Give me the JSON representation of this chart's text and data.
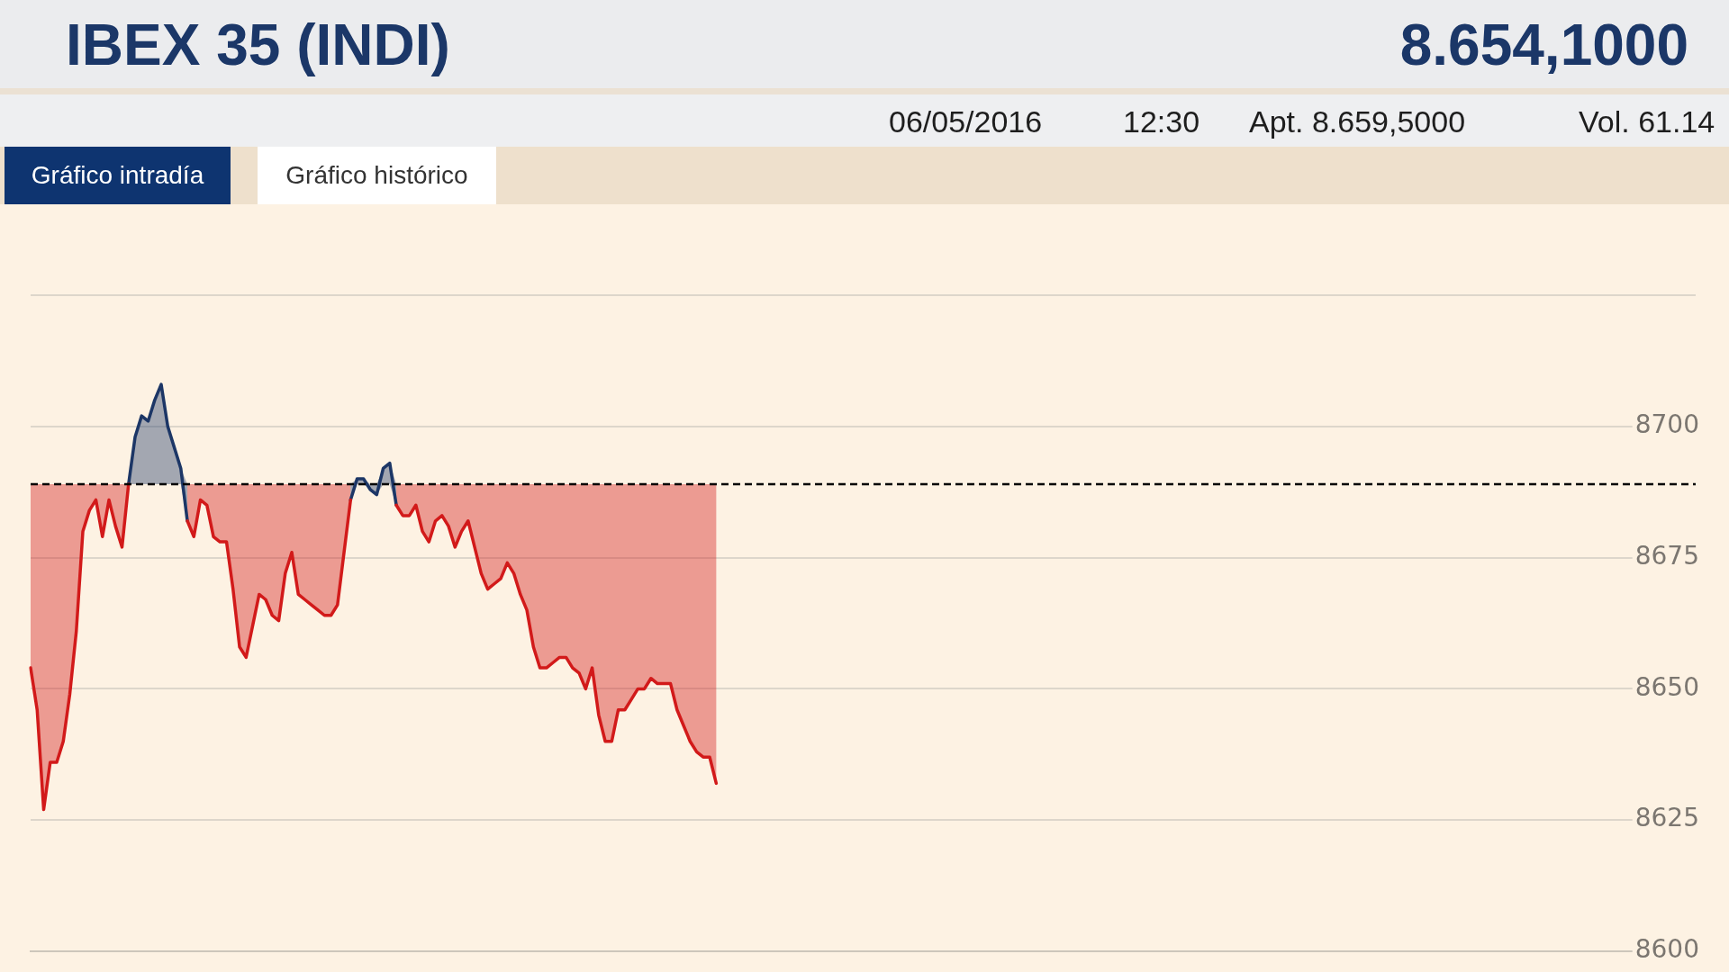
{
  "chart_data": {
    "type": "line",
    "title": "IBEX 35 (INDI)",
    "subtitle": "8.654,1000",
    "annotations": [
      "06/05/2016",
      "12:30",
      "Apt. 8.659,5000",
      "Vol. 61.14",
      "Gráfico intradía",
      "Gráfico histórico"
    ],
    "categories": [
      null,
      null,
      null,
      null,
      null,
      null,
      null,
      null,
      null,
      null,
      null,
      null,
      null,
      null,
      null,
      null,
      null,
      null,
      null,
      null,
      null,
      null,
      null,
      null,
      null,
      null,
      null,
      null,
      null,
      null,
      null,
      null,
      null,
      null,
      null,
      null,
      null,
      null,
      null,
      null,
      null,
      null,
      null,
      null,
      null,
      null,
      null,
      null,
      null,
      null,
      null,
      null,
      null,
      null,
      null,
      null,
      null,
      null,
      null,
      null,
      null,
      null,
      null,
      null,
      null,
      null,
      null,
      null,
      null,
      null,
      null,
      null,
      null,
      null,
      null,
      null,
      null,
      null,
      null,
      null,
      null,
      null,
      null,
      null,
      null,
      null,
      null,
      null,
      null,
      null,
      null,
      null,
      null,
      null,
      null,
      null,
      null,
      null,
      null,
      null,
      null,
      null,
      null,
      null,
      null,
      null,
      null,
      null,
      null,
      null,
      null,
      null,
      null,
      null,
      null,
      null,
      null,
      null,
      null,
      null,
      null,
      null,
      null,
      null,
      null,
      null,
      null,
      null,
      null,
      null,
      null,
      null,
      null,
      null,
      null,
      null,
      null,
      null,
      null,
      null,
      null,
      null,
      null,
      null,
      null,
      null,
      null,
      null,
      null,
      null,
      null,
      null,
      null,
      null,
      null,
      null,
      null,
      null,
      null,
      null,
      null,
      null,
      null,
      null,
      null,
      null,
      null,
      null,
      null,
      null,
      null,
      null,
      null,
      null,
      null,
      null,
      null,
      null,
      null,
      null,
      null,
      null,
      null,
      null,
      null,
      null,
      null,
      null,
      null,
      null,
      null,
      null,
      null,
      null,
      null,
      null,
      null,
      null,
      null,
      null,
      null,
      null,
      null,
      null,
      null,
      null,
      null,
      null,
      null,
      null,
      null,
      null,
      null,
      null,
      null,
      null,
      null,
      null,
      null,
      null,
      null,
      null,
      null,
      null,
      null,
      null,
      null,
      null,
      null,
      null,
      null,
      null,
      null,
      null,
      null,
      null,
      null,
      null,
      null,
      null,
      null,
      null,
      null,
      null,
      null,
      null,
      null,
      null,
      null,
      null,
      null,
      null,
      null,
      null,
      null,
      null
    ],
    "series": [
      {
        "color": "#d21a1a",
        "values": [
          8654,
          8646,
          8627,
          8636,
          8636,
          8640,
          8649,
          8661,
          8680,
          8684,
          8686,
          8679,
          8686,
          8681,
          8677,
          8689,
          null,
          null,
          null,
          null,
          null,
          null,
          null,
          null,
          8682,
          8679,
          8686,
          8685,
          8679,
          8678,
          8678,
          8669,
          8658,
          8656,
          8662,
          8668,
          8667,
          8664,
          8663,
          8672,
          8676,
          8668,
          8667,
          8666,
          8665,
          8664,
          8664,
          8666,
          8676,
          8686,
          null,
          null,
          null,
          null,
          null,
          null,
          8685,
          8683,
          8683,
          8685,
          8680,
          8678,
          8682,
          8683,
          8681,
          8677,
          8680,
          8682,
          8677,
          8672,
          8669,
          8670,
          8671,
          8674,
          8672,
          8668,
          8665,
          8658,
          8654,
          8654,
          8655,
          8656,
          8656,
          8654,
          8653,
          8650,
          8654,
          8645,
          8640,
          8640,
          8646,
          8646,
          8648,
          8650,
          8650,
          8652,
          8651,
          8651,
          8651,
          8646,
          8643,
          8640,
          8638,
          8637,
          8637,
          8632,
          null,
          null,
          null,
          null,
          null,
          null,
          null,
          null,
          null,
          null,
          null,
          null,
          null,
          null,
          null,
          null,
          null,
          null,
          null,
          null,
          null,
          null,
          null,
          null,
          null,
          null,
          null,
          null,
          null,
          null,
          null,
          null,
          null,
          null,
          null,
          null,
          null,
          null,
          null,
          null,
          null,
          null,
          null,
          null,
          null,
          null,
          null,
          null,
          null,
          null,
          null,
          null,
          null,
          null,
          null,
          null,
          null,
          null,
          null,
          null,
          null,
          null,
          null,
          null,
          null,
          null,
          null,
          null,
          null,
          null,
          null,
          null,
          null,
          null,
          null,
          null,
          null,
          null,
          null,
          null,
          null,
          null,
          null,
          null,
          null,
          null,
          null,
          null,
          null,
          null,
          null,
          null,
          null,
          null,
          null,
          null,
          null,
          null,
          null,
          null,
          null,
          null,
          null,
          null,
          null,
          null,
          null,
          null,
          null,
          null,
          null,
          null,
          null,
          null,
          null,
          null,
          null,
          null,
          null,
          null,
          null,
          null,
          null,
          null,
          null,
          null,
          null,
          null,
          null,
          null,
          null,
          null,
          null,
          null,
          null,
          null,
          null,
          null,
          null,
          null,
          null,
          null,
          null,
          null,
          null,
          null,
          null,
          null,
          null,
          null
        ],
        "lower": [
          8654,
          8646,
          8627,
          8636,
          8636,
          8640,
          8649,
          8661,
          8680,
          8684,
          8686,
          8679,
          8686,
          8681,
          8677,
          8689,
          null,
          null,
          null,
          null,
          null,
          null,
          null,
          null,
          8682,
          8679,
          8686,
          8685,
          8679,
          8678,
          8678,
          8669,
          8658,
          8656,
          8662,
          8668,
          8667,
          8664,
          8663,
          8672,
          8676,
          8668,
          8667,
          8666,
          8665,
          8664,
          8664,
          8666,
          8676,
          8686,
          null,
          null,
          null,
          null,
          null,
          null,
          8685,
          8683,
          8683,
          8685,
          8680,
          8678,
          8682,
          8683,
          8681,
          8677,
          8680,
          8682,
          8677,
          8672,
          8669,
          8670,
          8671,
          8674,
          8672,
          8668,
          8665,
          8658,
          8654,
          8654,
          8655,
          8656,
          8656,
          8654,
          8653,
          8650,
          8654,
          8645,
          8640,
          8640,
          8646,
          8646,
          8648,
          8650,
          8650,
          8652,
          8651,
          8651,
          8651,
          8646,
          8643,
          8640,
          8638,
          8637,
          8637,
          8632,
          null,
          null,
          null,
          null,
          null,
          null,
          null,
          null,
          null,
          null,
          null,
          null,
          null,
          null,
          null,
          null,
          null,
          null,
          null,
          null,
          null,
          null,
          null,
          null,
          null,
          null,
          null,
          null,
          null,
          null,
          null,
          null,
          null,
          null,
          null,
          null,
          null,
          null,
          null,
          null,
          null,
          null,
          null,
          null,
          null,
          null,
          null,
          null,
          null,
          null,
          null,
          null,
          null,
          null,
          null,
          null,
          null,
          null,
          null,
          null,
          null,
          null,
          null,
          null,
          null,
          null,
          null,
          null,
          null,
          null,
          null,
          null,
          null,
          null,
          null,
          null,
          null,
          null,
          null,
          null,
          null,
          null,
          null,
          null,
          null,
          null,
          null,
          null,
          null,
          null,
          null,
          null,
          null,
          null,
          null,
          null,
          null,
          null,
          null,
          null,
          null,
          null,
          null,
          null,
          null,
          null,
          null,
          null,
          null,
          null,
          null,
          null,
          null,
          null,
          null,
          null,
          null,
          null,
          null,
          null,
          null,
          null,
          null,
          null,
          null,
          null,
          null,
          null,
          null,
          null,
          null,
          null,
          null,
          null,
          null,
          null,
          null,
          null,
          null,
          null,
          null,
          null,
          null,
          null,
          null,
          null,
          null,
          null,
          null,
          null
        ],
        "upper": [
          8689,
          8689,
          8689,
          8689,
          8689,
          8689,
          8689,
          8689,
          8689,
          8689,
          8689,
          8689,
          8689,
          8689,
          8689,
          8689,
          null,
          null,
          null,
          null,
          null,
          null,
          null,
          null,
          8689,
          8689,
          8689,
          8689,
          8689,
          8689,
          8689,
          8689,
          8689,
          8689,
          8689,
          8689,
          8689,
          8689,
          8689,
          8689,
          8689,
          8689,
          8689,
          8689,
          8689,
          8689,
          8689,
          8689,
          8689,
          8689,
          null,
          null,
          null,
          null,
          null,
          null,
          8689,
          8689,
          8689,
          8689,
          8689,
          8689,
          8689,
          8689,
          8689,
          8689,
          8689,
          8689,
          8689,
          8689,
          8689,
          8689,
          8689,
          8689,
          8689,
          8689,
          8689,
          8689,
          8689,
          8689,
          8689,
          8689,
          8689,
          8689,
          8689,
          8689,
          8689,
          8689,
          8689,
          8689,
          8689,
          8689,
          8689,
          8689,
          8689,
          8689,
          8689,
          8689,
          8689,
          8689,
          8689,
          8689,
          8689,
          8689,
          8689,
          8689,
          null,
          null,
          null,
          null,
          null,
          null,
          null,
          null,
          null,
          null,
          null,
          null,
          null,
          null,
          null,
          null,
          null,
          null,
          null,
          null,
          null,
          null,
          null,
          null,
          null,
          null,
          null,
          null,
          null,
          null,
          null,
          null,
          null,
          null,
          null,
          null,
          null,
          null,
          null,
          null,
          null,
          null,
          null,
          null,
          null,
          null,
          null,
          null,
          null,
          null,
          null,
          null,
          null,
          null,
          null,
          null,
          null,
          null,
          null,
          null,
          null,
          null,
          null,
          null,
          null,
          null,
          null,
          null,
          null,
          null,
          null,
          null,
          null,
          null,
          null,
          null,
          null,
          null,
          null,
          null,
          null,
          null,
          null,
          null,
          null,
          null,
          null,
          null,
          null,
          null,
          null,
          null,
          null,
          null,
          null,
          null,
          null,
          null,
          null,
          null,
          null,
          null,
          null,
          null,
          null,
          null,
          null,
          null,
          null,
          null,
          null,
          null,
          null,
          null,
          null,
          null,
          null,
          null,
          null,
          null,
          null,
          null,
          null,
          null,
          null,
          null,
          null,
          null,
          null,
          null,
          null,
          null,
          null,
          null,
          null,
          null,
          null,
          null,
          null,
          null,
          null,
          null,
          null,
          null,
          null,
          null,
          null,
          null,
          null,
          null
        ]
      },
      {
        "color": "#1c3666",
        "values": [
          null,
          null,
          null,
          null,
          null,
          null,
          null,
          null,
          null,
          null,
          null,
          null,
          null,
          null,
          null,
          8689,
          8698,
          8702,
          8701,
          8705,
          8708,
          8700,
          8696,
          8692,
          8682,
          null,
          null,
          null,
          null,
          null,
          null,
          null,
          null,
          null,
          null,
          null,
          null,
          null,
          null,
          null,
          null,
          null,
          null,
          null,
          null,
          null,
          null,
          null,
          null,
          8686,
          8690,
          8690,
          8688,
          8687,
          8692,
          8693,
          8685,
          null,
          null,
          null,
          null,
          null,
          null,
          null,
          null,
          null,
          null,
          null,
          null,
          null,
          null,
          null,
          null,
          null,
          null,
          null,
          null,
          null,
          null,
          null,
          null,
          null,
          null,
          null,
          null,
          null,
          null,
          null,
          null,
          null,
          null,
          null,
          null,
          null,
          null,
          null,
          null,
          null,
          null,
          null,
          null,
          null,
          null,
          null,
          null,
          null,
          null,
          null,
          null,
          null,
          null,
          null,
          null,
          null,
          null,
          null,
          null,
          null,
          null,
          null,
          null,
          null,
          null,
          null,
          null,
          null,
          null,
          null,
          null,
          null,
          null,
          null,
          null,
          null,
          null,
          null,
          null,
          null,
          null,
          null,
          null,
          null,
          null,
          null,
          null,
          null,
          null,
          null,
          null,
          null,
          null,
          null,
          null,
          null,
          null,
          null,
          null,
          null,
          null,
          null,
          null,
          null,
          null,
          null,
          null,
          null,
          null,
          null,
          null,
          null,
          null,
          null,
          null,
          null,
          null,
          null,
          null,
          null,
          null,
          null,
          null,
          null,
          null,
          null,
          null,
          null,
          null,
          null,
          null,
          null,
          null,
          null,
          null,
          null,
          null,
          null,
          null,
          null,
          null,
          null,
          null,
          null,
          null,
          null,
          null,
          null,
          null,
          null,
          null,
          null,
          null,
          null,
          null,
          null,
          null,
          null,
          null,
          null,
          null,
          null,
          null,
          null,
          null,
          null,
          null,
          null,
          null,
          null,
          null,
          null,
          null,
          null,
          null,
          null,
          null,
          null,
          null,
          null,
          null,
          null,
          null,
          null,
          null,
          null,
          null,
          null,
          null,
          null,
          null,
          null,
          null,
          null,
          null,
          null,
          null,
          null
        ],
        "lower": [
          null,
          null,
          null,
          null,
          null,
          null,
          null,
          null,
          null,
          null,
          null,
          null,
          null,
          null,
          null,
          8689,
          8689,
          8689,
          8689,
          8689,
          8689,
          8689,
          8689,
          8689,
          8682,
          null,
          null,
          null,
          null,
          null,
          null,
          null,
          null,
          null,
          null,
          null,
          null,
          null,
          null,
          null,
          null,
          null,
          null,
          null,
          null,
          null,
          null,
          null,
          null,
          8686,
          8689,
          8689,
          8688,
          8687,
          8689,
          8689,
          8685,
          null,
          null,
          null,
          null,
          null,
          null,
          null,
          null,
          null,
          null,
          null,
          null,
          null,
          null,
          null,
          null,
          null,
          null,
          null,
          null,
          null,
          null,
          null,
          null,
          null,
          null,
          null,
          null,
          null,
          null,
          null,
          null,
          null,
          null,
          null,
          null,
          null,
          null,
          null,
          null,
          null,
          null,
          null,
          null,
          null,
          null,
          null,
          null,
          null,
          null,
          null,
          null,
          null,
          null,
          null,
          null,
          null,
          null,
          null,
          null,
          null,
          null,
          null,
          null,
          null,
          null,
          null,
          null,
          null,
          null,
          null,
          null,
          null,
          null,
          null,
          null,
          null,
          null,
          null,
          null,
          null,
          null,
          null,
          null,
          null,
          null,
          null,
          null,
          null,
          null,
          null,
          null,
          null,
          null,
          null,
          null,
          null,
          null,
          null,
          null,
          null,
          null,
          null,
          null,
          null,
          null,
          null,
          null,
          null,
          null,
          null,
          null,
          null,
          null,
          null,
          null,
          null,
          null,
          null,
          null,
          null,
          null,
          null,
          null,
          null,
          null,
          null,
          null,
          null,
          null,
          null,
          null,
          null,
          null,
          null,
          null,
          null,
          null,
          null,
          null,
          null,
          null,
          null,
          null,
          null,
          null,
          null,
          null,
          null,
          null,
          null,
          null,
          null,
          null,
          null,
          null,
          null,
          null,
          null,
          null,
          null,
          null,
          null,
          null,
          null,
          null,
          null,
          null,
          null,
          null,
          null,
          null,
          null,
          null,
          null,
          null,
          null,
          null,
          null,
          null,
          null,
          null,
          null,
          null,
          null,
          null,
          null,
          null,
          null,
          null,
          null,
          null,
          null,
          null,
          null,
          null,
          null,
          null,
          null
        ],
        "upper": [
          null,
          null,
          null,
          null,
          null,
          null,
          null,
          null,
          null,
          null,
          null,
          null,
          null,
          null,
          null,
          8689,
          8698,
          8702,
          8701,
          8705,
          8708,
          8700,
          8696,
          8692,
          8689,
          null,
          null,
          null,
          null,
          null,
          null,
          null,
          null,
          null,
          null,
          null,
          null,
          null,
          null,
          null,
          null,
          null,
          null,
          null,
          null,
          null,
          null,
          null,
          null,
          8689,
          8690,
          8690,
          8689,
          8689,
          8692,
          8693,
          8689,
          null,
          null,
          null,
          null,
          null,
          null,
          null,
          null,
          null,
          null,
          null,
          null,
          null,
          null,
          null,
          null,
          null,
          null,
          null,
          null,
          null,
          null,
          null,
          null,
          null,
          null,
          null,
          null,
          null,
          null,
          null,
          null,
          null,
          null,
          null,
          null,
          null,
          null,
          null,
          null,
          null,
          null,
          null,
          null,
          null,
          null,
          null,
          null,
          null,
          null,
          null,
          null,
          null,
          null,
          null,
          null,
          null,
          null,
          null,
          null,
          null,
          null,
          null,
          null,
          null,
          null,
          null,
          null,
          null,
          null,
          null,
          null,
          null,
          null,
          null,
          null,
          null,
          null,
          null,
          null,
          null,
          null,
          null,
          null,
          null,
          null,
          null,
          null,
          null,
          null,
          null,
          null,
          null,
          null,
          null,
          null,
          null,
          null,
          null,
          null,
          null,
          null,
          null,
          null,
          null,
          null,
          null,
          null,
          null,
          null,
          null,
          null,
          null,
          null,
          null,
          null,
          null,
          null,
          null,
          null,
          null,
          null,
          null,
          null,
          null,
          null,
          null,
          null,
          null,
          null,
          null,
          null,
          null,
          null,
          null,
          null,
          null,
          null,
          null,
          null,
          null,
          null,
          null,
          null,
          null,
          null,
          null,
          null,
          null,
          null,
          null,
          null,
          null,
          null,
          null,
          null,
          null,
          null,
          null,
          null,
          null,
          null,
          null,
          null,
          null,
          null,
          null,
          null,
          null,
          null,
          null,
          null,
          null,
          null,
          null,
          null,
          null,
          null,
          null,
          null,
          null,
          null,
          null,
          null,
          null,
          null,
          null,
          null,
          null,
          null,
          null,
          null,
          null,
          null,
          null,
          null,
          null,
          null,
          null
        ]
      }
    ],
    "ylim": [
      8600,
      8725
    ],
    "yticks": [
      8600,
      8625,
      8650,
      8675,
      8700,
      {
        "value": 8725,
        "label": null
      }
    ],
    "ref_lines": [
      {
        "axis": "y",
        "value": 8689,
        "color": "#000000",
        "line_style": "dashed"
      }
    ],
    "grid": "y",
    "marker": "none",
    "tick_labels": "y"
  }
}
